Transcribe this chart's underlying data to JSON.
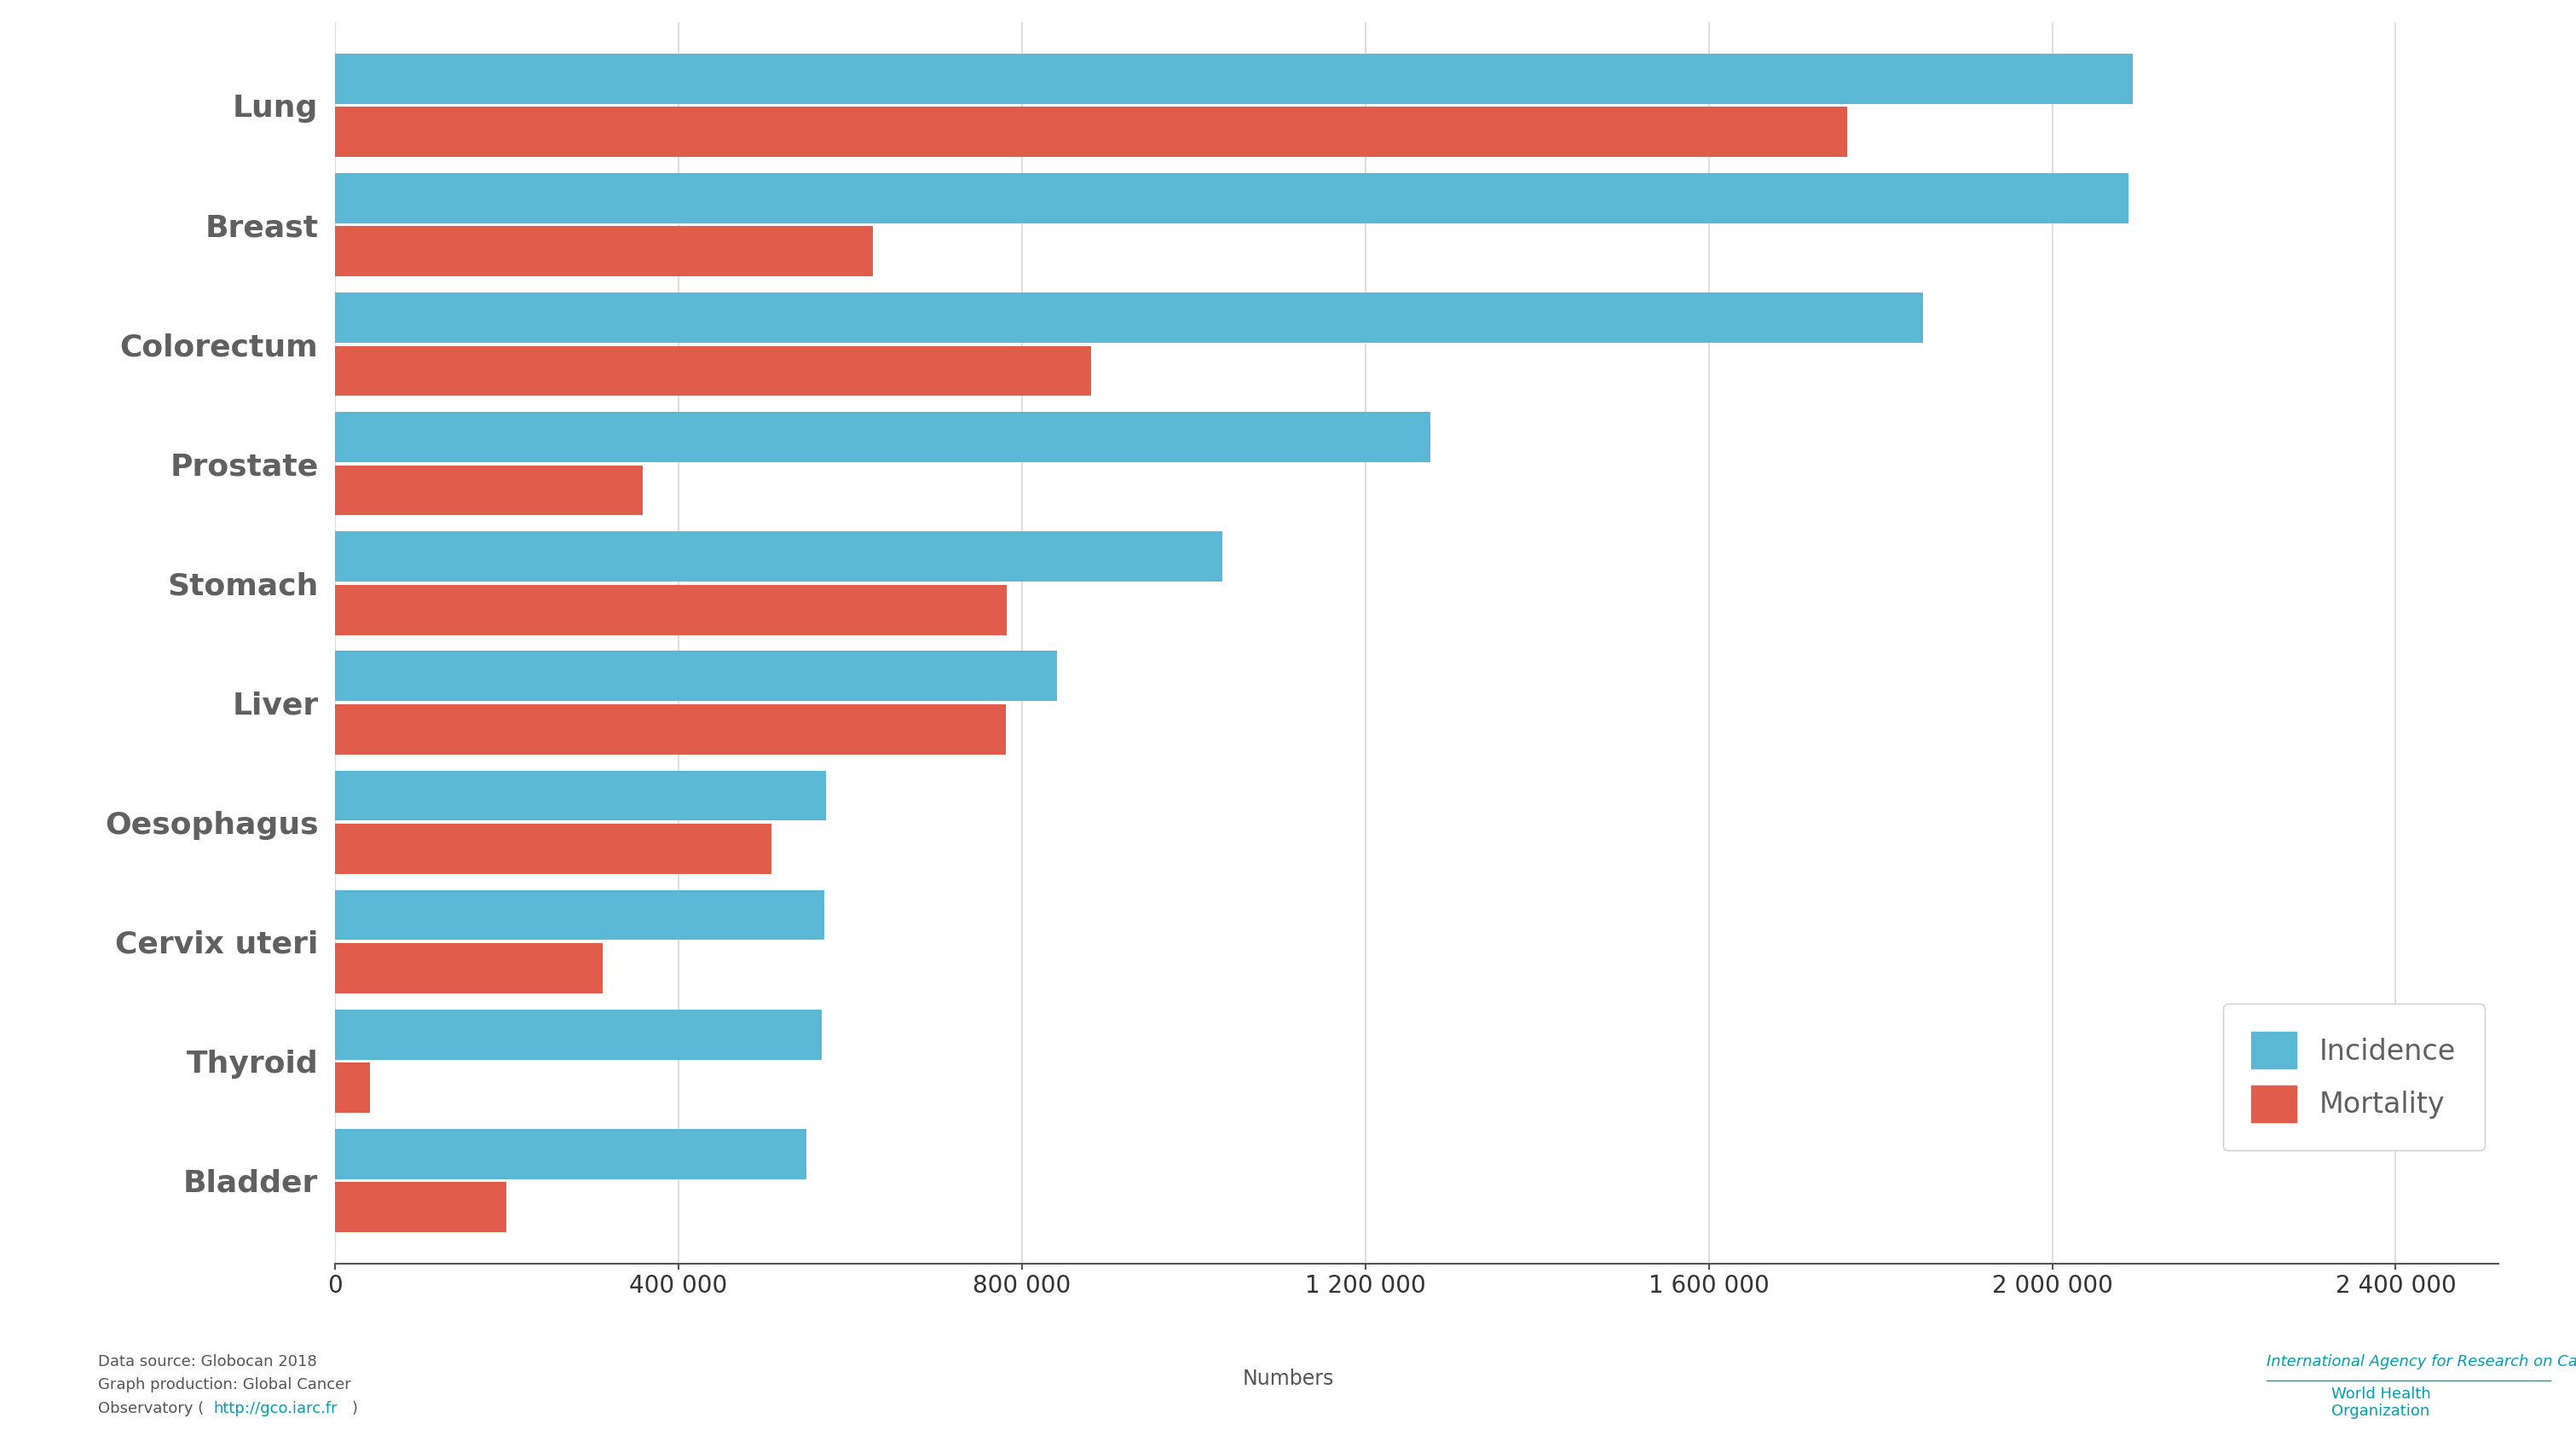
{
  "categories": [
    "Lung",
    "Breast",
    "Colorectum",
    "Prostate",
    "Stomach",
    "Liver",
    "Oesophagus",
    "Cervix uteri",
    "Thyroid",
    "Bladder"
  ],
  "incidence": [
    2093876,
    2088849,
    1849518,
    1276106,
    1033701,
    841080,
    572034,
    569847,
    567233,
    549393
  ],
  "mortality": [
    1761007,
    626679,
    880792,
    358989,
    782685,
    781631,
    508585,
    311365,
    41071,
    199922
  ],
  "incidence_color": "#5bb8d4",
  "mortality_color": "#e05c4b",
  "background_color": "#ffffff",
  "grid_color": "#d8d8d8",
  "label_color": "#606060",
  "xlabel": "Numbers",
  "legend_labels": [
    "Incidence",
    "Mortality"
  ],
  "xlim": [
    0,
    2520000
  ],
  "xtick_values": [
    0,
    400000,
    800000,
    1200000,
    1600000,
    2000000,
    2400000
  ],
  "xtick_labels": [
    "0",
    "400 000",
    "800 000",
    "1 200 000",
    "1 600 000",
    "2 000 000",
    "2 400 000"
  ],
  "bar_height": 0.42,
  "bar_gap": 0.025,
  "footnote_line1": "Data source: Globocan 2018",
  "footnote_line2": "Graph production: Global Cancer",
  "footnote_line3": "Observatory (http://gco.iarc.fr)",
  "iarc_text": "International Agency for Research on Cancer",
  "who_text": "World Health\nOrganization",
  "iarc_color": "#00a0b0",
  "who_color": "#00a0b0",
  "numbers_label_color": "#555555",
  "footnote_color": "#555555",
  "xtick_color": "#333333",
  "spine_color": "#555555"
}
